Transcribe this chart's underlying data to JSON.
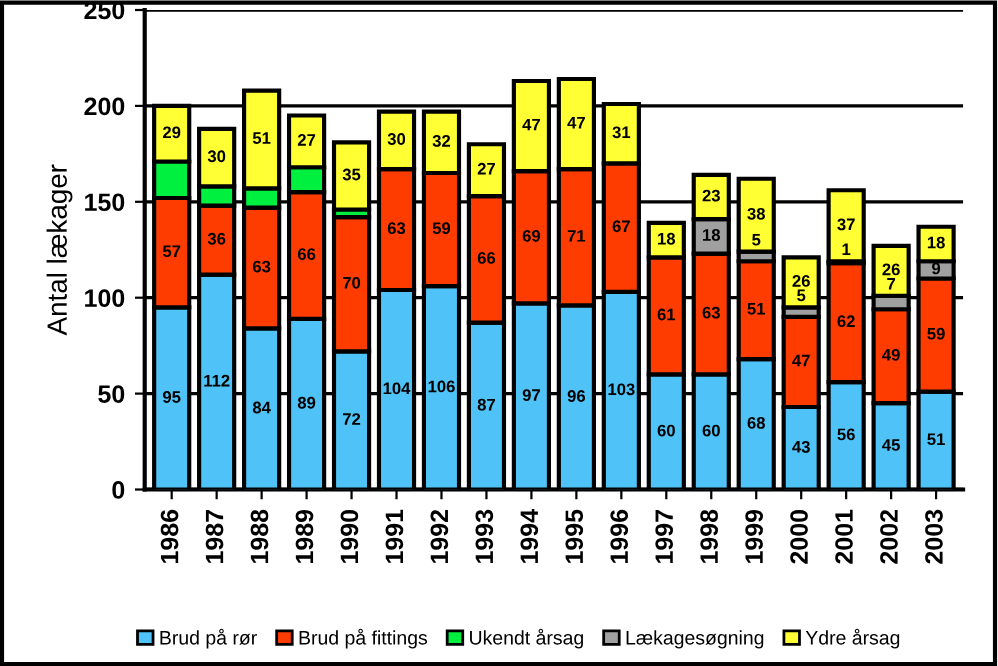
{
  "chart_data": {
    "type": "bar",
    "stacked": true,
    "ylabel": "Antal lækager",
    "categories": [
      "1986",
      "1987",
      "1988",
      "1989",
      "1990",
      "1991",
      "1992",
      "1993",
      "1994",
      "1995",
      "1996",
      "1997",
      "1998",
      "1999",
      "2000",
      "2001",
      "2002",
      "2003"
    ],
    "series": [
      {
        "name": "Brud på rør",
        "color": "#4fc3f7",
        "values": [
          95,
          112,
          84,
          89,
          72,
          104,
          106,
          87,
          97,
          96,
          103,
          60,
          60,
          68,
          43,
          56,
          45,
          51
        ],
        "value_labels": [
          "95",
          "112",
          "84",
          "89",
          "72",
          "104",
          "106",
          "87",
          "97",
          "96",
          "103",
          "60",
          "60",
          "68",
          "43",
          "56",
          "45",
          "51"
        ]
      },
      {
        "name": "Brud på fittings",
        "color": "#ff3c00",
        "values": [
          57,
          36,
          63,
          66,
          70,
          63,
          59,
          66,
          69,
          71,
          67,
          61,
          63,
          51,
          47,
          62,
          49,
          59
        ],
        "value_labels": [
          "57",
          "36",
          "63",
          "66",
          "70",
          "63",
          "59",
          "66",
          "69",
          "71",
          "67",
          "61",
          "63",
          "51",
          "47",
          "62",
          "49",
          "59"
        ]
      },
      {
        "name": "Ukendt årsag",
        "color": "#00f040",
        "values": [
          19,
          10,
          10,
          13,
          4,
          null,
          null,
          null,
          null,
          null,
          null,
          null,
          null,
          null,
          null,
          null,
          null,
          null
        ]
      },
      {
        "name": "Lækagesøgning",
        "color": "#a0a0a0",
        "values": [
          null,
          null,
          null,
          null,
          null,
          null,
          null,
          null,
          null,
          null,
          null,
          null,
          18,
          5,
          5,
          1,
          7,
          9
        ],
        "value_labels": [
          null,
          null,
          null,
          null,
          null,
          null,
          null,
          null,
          null,
          null,
          null,
          null,
          "18",
          "5",
          "5",
          "1",
          "7",
          "9"
        ]
      },
      {
        "name": "Ydre årsag",
        "color": "#ffff33",
        "values": [
          29,
          30,
          51,
          27,
          35,
          30,
          32,
          27,
          47,
          47,
          31,
          18,
          23,
          38,
          26,
          37,
          26,
          18
        ],
        "value_labels": [
          "29",
          "30",
          "51",
          "27",
          "35",
          "30",
          "32",
          "27",
          "47",
          "47",
          "31",
          "18",
          "23",
          "38",
          "26",
          "37",
          "26",
          "18"
        ]
      }
    ],
    "ylim": [
      0,
      250
    ],
    "yticks": [
      0,
      50,
      100,
      150,
      200,
      250
    ],
    "grid": "y",
    "legend": "bottom"
  }
}
